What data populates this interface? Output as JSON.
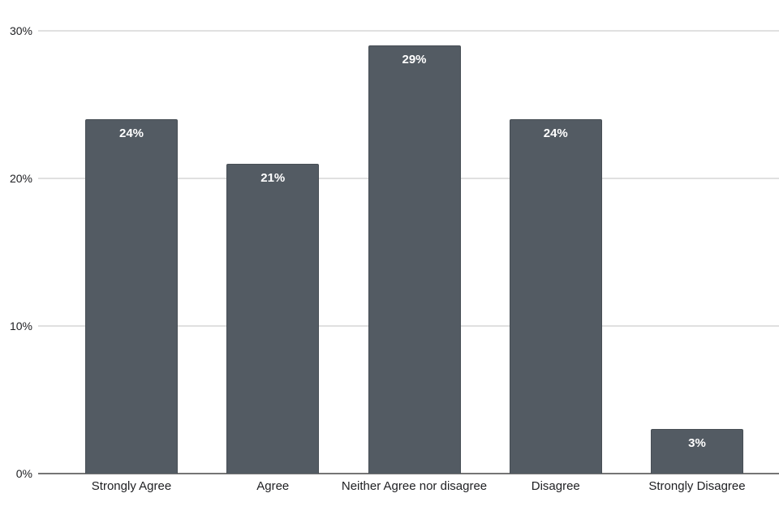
{
  "chart_data": {
    "type": "bar",
    "title": "",
    "xlabel": "",
    "ylabel": "",
    "categories": [
      "Strongly Agree",
      "Agree",
      "Neither Agree nor disagree",
      "Disagree",
      "Strongly Disagree"
    ],
    "values": [
      24,
      21,
      29,
      24,
      3
    ],
    "bar_labels": [
      "24%",
      "21%",
      "29%",
      "24%",
      "3%"
    ],
    "ylim": [
      0,
      30
    ],
    "yticks": [
      0,
      10,
      20,
      30
    ],
    "ytick_labels": [
      "0%",
      "10%",
      "20%",
      "30%"
    ],
    "grid": true,
    "legend": false
  },
  "colors": {
    "background": "#ffffff",
    "bar_fill": "#535b63",
    "bar_border": "#474e55",
    "bar_label_text": "#ffffff",
    "gridline": "#e0e0e0",
    "axis_line": "#757575",
    "axis_text": "#202124"
  }
}
